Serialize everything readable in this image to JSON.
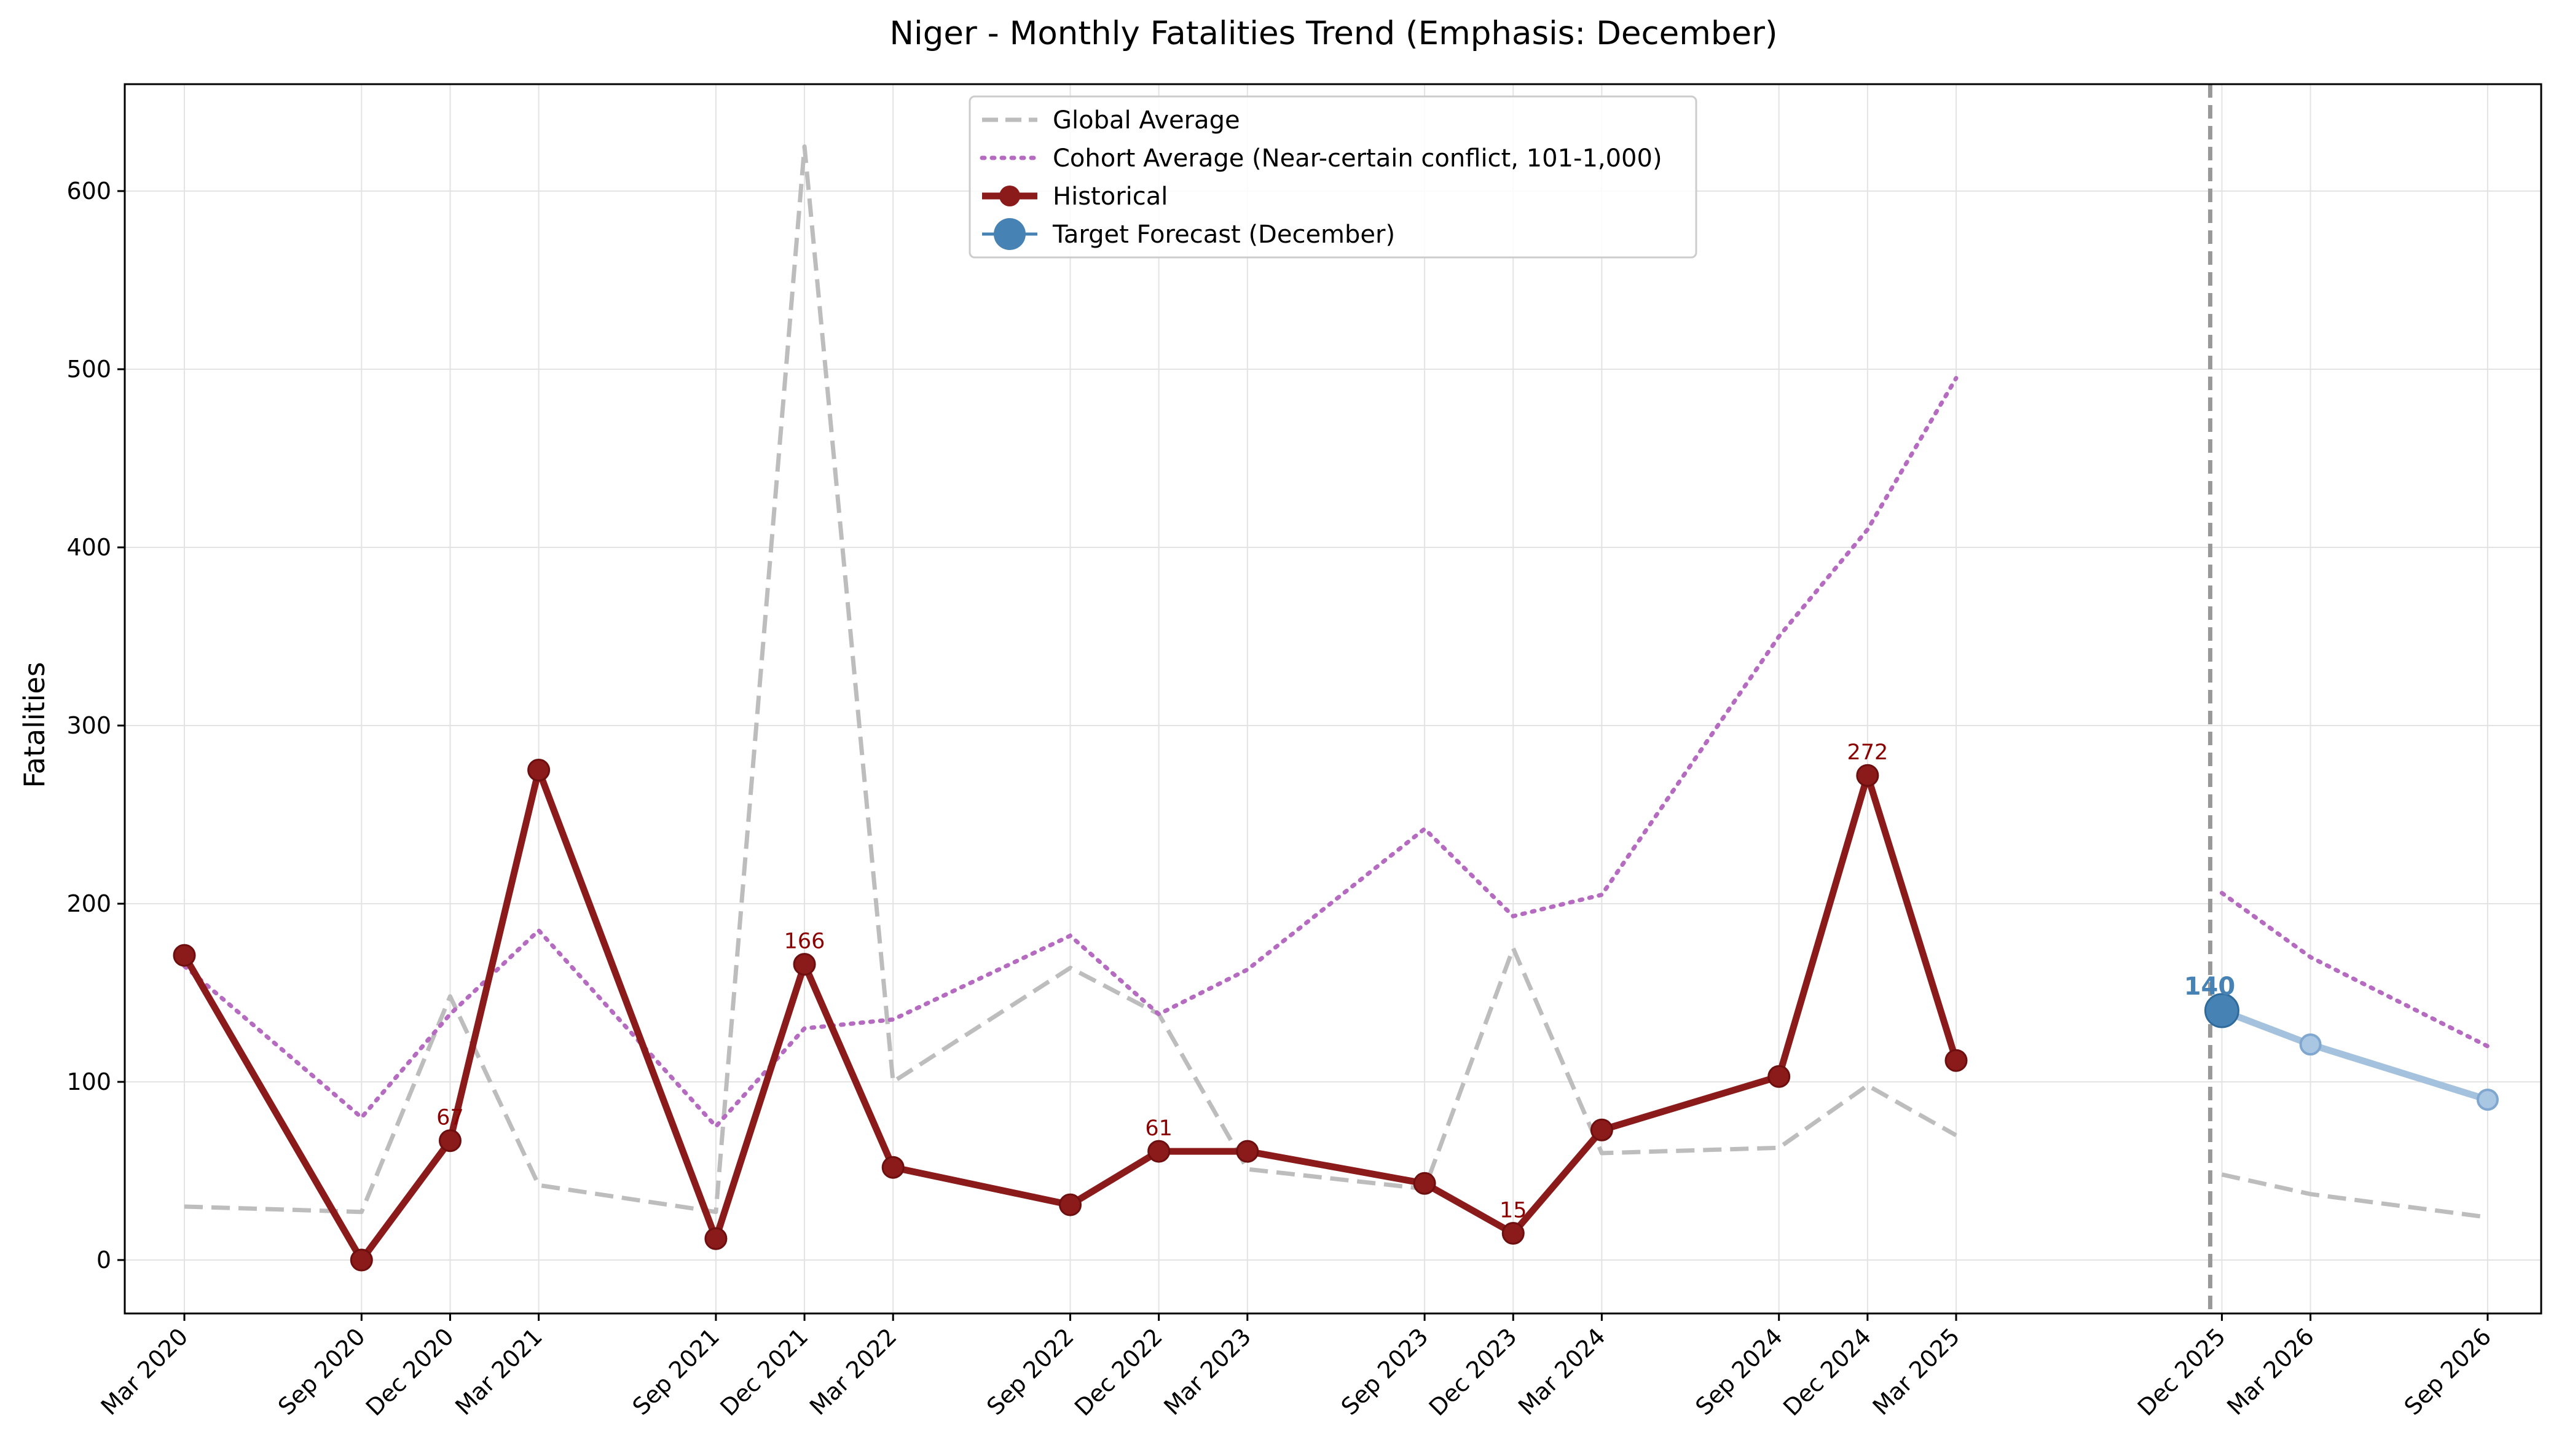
{
  "chart_data": {
    "type": "line",
    "title": "Niger - Monthly Fatalities Trend (Emphasis: December)",
    "xlabel": "",
    "ylabel": "Fatalities",
    "ylim": [
      -30,
      660
    ],
    "yticks": [
      0,
      100,
      200,
      300,
      400,
      500,
      600
    ],
    "grid": true,
    "legend_position": "top-center",
    "forecast_divider_month": 69,
    "x_month_index_origin": "Mar 2020",
    "xticks": [
      {
        "label": "Mar 2020",
        "month": 0
      },
      {
        "label": "Sep 2020",
        "month": 6
      },
      {
        "label": "Dec 2020",
        "month": 9
      },
      {
        "label": "Mar 2021",
        "month": 12
      },
      {
        "label": "Sep 2021",
        "month": 18
      },
      {
        "label": "Dec 2021",
        "month": 21
      },
      {
        "label": "Mar 2022",
        "month": 24
      },
      {
        "label": "Sep 2022",
        "month": 30
      },
      {
        "label": "Dec 2022",
        "month": 33
      },
      {
        "label": "Mar 2023",
        "month": 36
      },
      {
        "label": "Sep 2023",
        "month": 42
      },
      {
        "label": "Dec 2023",
        "month": 45
      },
      {
        "label": "Mar 2024",
        "month": 48
      },
      {
        "label": "Sep 2024",
        "month": 54
      },
      {
        "label": "Dec 2024",
        "month": 57
      },
      {
        "label": "Mar 2025",
        "month": 60
      },
      {
        "label": "Dec 2025",
        "month": 69
      },
      {
        "label": "Mar 2026",
        "month": 72
      },
      {
        "label": "Sep 2026",
        "month": 78
      }
    ],
    "series": [
      {
        "name": "Global Average",
        "style": "dashed",
        "color": "#bdbdbd",
        "segments": [
          {
            "x": [
              0,
              6,
              9,
              12,
              18,
              21,
              24,
              30,
              33,
              36,
              42,
              45,
              48,
              54,
              57,
              60
            ],
            "y": [
              30,
              27,
              148,
              42,
              27,
              625,
              100,
              164,
              138,
              51,
              40,
              175,
              60,
              63,
              98,
              70
            ]
          },
          {
            "x": [
              69,
              72,
              78
            ],
            "y": [
              48,
              37,
              24
            ]
          }
        ]
      },
      {
        "name": "Cohort Average (Near-certain conflict, 101-1,000)",
        "style": "dotted",
        "color": "#b56bc0",
        "segments": [
          {
            "x": [
              0,
              6,
              9,
              12,
              18,
              21,
              24,
              30,
              33,
              36,
              42,
              45,
              48,
              54,
              57,
              60
            ],
            "y": [
              165,
              80,
              138,
              185,
              75,
              130,
              135,
              182,
              138,
              163,
              242,
              193,
              205,
              350,
              410,
              495
            ]
          },
          {
            "x": [
              69,
              72,
              78
            ],
            "y": [
              206,
              170,
              120
            ]
          }
        ]
      },
      {
        "name": "Historical",
        "style": "solid",
        "color": "#8b1a1a",
        "x": [
          0,
          6,
          9,
          12,
          18,
          21,
          24,
          30,
          33,
          36,
          42,
          45,
          48,
          54,
          57,
          60
        ],
        "y": [
          171,
          0,
          67,
          275,
          12,
          166,
          52,
          31,
          61,
          61,
          43,
          15,
          73,
          103,
          272,
          112
        ],
        "labels": [
          {
            "x": 9,
            "y": 67,
            "text": "67"
          },
          {
            "x": 21,
            "y": 166,
            "text": "166"
          },
          {
            "x": 33,
            "y": 61,
            "text": "61"
          },
          {
            "x": 45,
            "y": 15,
            "text": "15"
          },
          {
            "x": 57,
            "y": 272,
            "text": "272"
          }
        ]
      },
      {
        "name": "Target Forecast (December)",
        "style": "solid",
        "color": "#4682b4",
        "x": [
          69
        ],
        "y": [
          140
        ],
        "label": "140"
      },
      {
        "style": "solid-faded",
        "color": "#a4c1dd",
        "x": [
          69,
          72,
          78
        ],
        "y": [
          140,
          121,
          90
        ]
      }
    ]
  }
}
